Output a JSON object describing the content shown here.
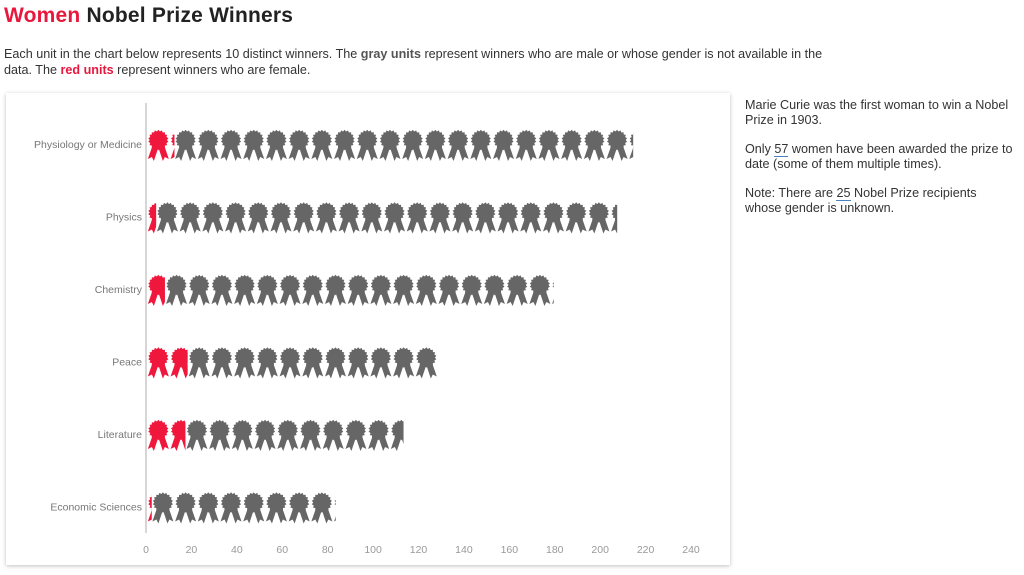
{
  "header": {
    "title_accent": "Women",
    "title_rest": " Nobel Prize Winners",
    "intro_1": "Each unit in the chart below represents 10 distinct winners. The ",
    "intro_gray": "gray units",
    "intro_2": " represent winners who are male or whose gender is not available in the data. The ",
    "intro_red": "red units",
    "intro_3": " represent winners who are female."
  },
  "notes": {
    "p1": "Marie Curie was the first woman to win a Nobel Prize in 1903.",
    "p2_pre": "Only ",
    "p2_num": "57",
    "p2_post": " women have been awarded the prize to date (some of them multiple times).",
    "p3_pre": "Note: There are ",
    "p3_num": "25",
    "p3_post": " Nobel Prize recipients whose gender is unknown."
  },
  "colors": {
    "female": "#f0173d",
    "other": "#666666",
    "axis": "#bbbbbb"
  },
  "chart_data": {
    "type": "bar",
    "categories": [
      "Physiology or Medicine",
      "Physics",
      "Chemistry",
      "Peace",
      "Literature",
      "Economic Sciences"
    ],
    "series": [
      {
        "name": "female",
        "values": [
          12,
          4,
          8,
          18,
          17,
          2
        ]
      },
      {
        "name": "other",
        "values": [
          202,
          203,
          171,
          110,
          96,
          81
        ]
      }
    ],
    "unit_size": 10,
    "xlim": [
      0,
      240
    ],
    "x_ticks": [
      0,
      20,
      40,
      60,
      80,
      100,
      120,
      140,
      160,
      180,
      200,
      220,
      240
    ],
    "grid": false,
    "icon": "award-ribbon-icon"
  }
}
